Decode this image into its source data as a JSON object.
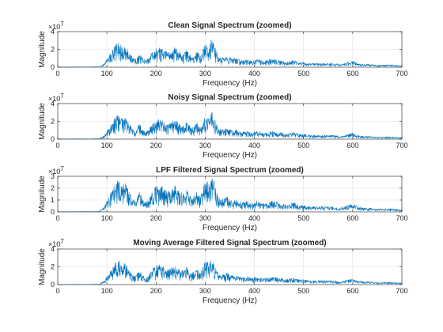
{
  "figure": {
    "background": "#ffffff"
  },
  "chart_data": [
    {
      "type": "line",
      "title": "Clean Signal Spectrum (zoomed)",
      "xlabel": "Frequency (Hz)",
      "ylabel": "Magnitude",
      "y_exponent": "×10",
      "y_exponent_power": "7",
      "xlim": [
        0,
        700
      ],
      "ylim": [
        0,
        4
      ],
      "xticks": [
        "0",
        "100",
        "200",
        "300",
        "400",
        "500",
        "600",
        "700"
      ],
      "yticks": [
        "0",
        "2",
        "4"
      ],
      "grid": true,
      "color": "#0072BD",
      "envelope": {
        "x": [
          0,
          85,
          95,
          105,
          112,
          118,
          125,
          130,
          138,
          145,
          152,
          158,
          162,
          166,
          172,
          180,
          188,
          195,
          200,
          210,
          218,
          225,
          232,
          240,
          248,
          256,
          262,
          270,
          278,
          284,
          290,
          296,
          302,
          308,
          312,
          318,
          322,
          328,
          335,
          345,
          355,
          365,
          375,
          385,
          395,
          405,
          420,
          435,
          450,
          465,
          480,
          490,
          500,
          515,
          530,
          545,
          560,
          575,
          590,
          600,
          610,
          620,
          635,
          650,
          670,
          690,
          700
        ],
        "y": [
          0,
          0.05,
          0.4,
          1.2,
          1.7,
          2.3,
          2.4,
          2.0,
          2.1,
          1.6,
          1.0,
          0.8,
          1.1,
          1.5,
          1.0,
          0.7,
          1.2,
          1.7,
          1.9,
          2.0,
          1.6,
          1.5,
          1.7,
          2.0,
          1.5,
          1.4,
          1.7,
          1.2,
          1.3,
          1.6,
          1.1,
          1.9,
          2.4,
          2.0,
          2.8,
          2.3,
          1.6,
          1.0,
          1.0,
          1.1,
          0.9,
          0.9,
          0.7,
          0.8,
          0.6,
          0.8,
          0.6,
          0.8,
          0.7,
          0.5,
          0.7,
          0.5,
          0.5,
          0.4,
          0.4,
          0.4,
          0.4,
          0.3,
          0.5,
          0.6,
          0.4,
          0.3,
          0.3,
          0.2,
          0.25,
          0.2,
          0.15
        ]
      },
      "x_step": 0.5
    },
    {
      "type": "line",
      "title": "Noisy Signal Spectrum (zoomed)",
      "xlabel": "Frequency (Hz)",
      "ylabel": "Magnitude",
      "y_exponent": "×10",
      "y_exponent_power": "7",
      "xlim": [
        0,
        700
      ],
      "ylim": [
        0,
        4
      ],
      "xticks": [
        "0",
        "100",
        "200",
        "300",
        "400",
        "500",
        "600",
        "700"
      ],
      "yticks": [
        "0",
        "2",
        "4"
      ],
      "grid": true,
      "color": "#0072BD",
      "envelope": {
        "x": [
          0,
          85,
          95,
          105,
          112,
          118,
          125,
          130,
          138,
          145,
          152,
          158,
          162,
          166,
          172,
          180,
          188,
          195,
          200,
          210,
          218,
          225,
          232,
          240,
          248,
          256,
          262,
          270,
          278,
          284,
          290,
          296,
          302,
          308,
          312,
          318,
          322,
          328,
          335,
          345,
          355,
          365,
          375,
          385,
          395,
          405,
          420,
          435,
          450,
          465,
          480,
          490,
          500,
          515,
          530,
          545,
          560,
          575,
          590,
          600,
          610,
          620,
          635,
          650,
          670,
          690,
          700
        ],
        "y": [
          0,
          0.05,
          0.4,
          1.2,
          1.7,
          2.3,
          2.4,
          2.0,
          2.1,
          1.6,
          1.0,
          0.8,
          1.1,
          1.5,
          1.0,
          0.7,
          1.2,
          1.7,
          1.9,
          2.0,
          1.6,
          1.5,
          1.7,
          2.0,
          1.5,
          1.4,
          1.7,
          1.2,
          1.3,
          1.6,
          1.1,
          1.9,
          2.4,
          2.0,
          2.8,
          2.3,
          1.6,
          1.0,
          1.0,
          1.1,
          0.9,
          0.9,
          0.7,
          0.8,
          0.6,
          0.8,
          0.6,
          0.8,
          0.7,
          0.5,
          0.7,
          0.5,
          0.5,
          0.4,
          0.4,
          0.4,
          0.4,
          0.3,
          0.5,
          0.6,
          0.4,
          0.3,
          0.3,
          0.2,
          0.25,
          0.2,
          0.15
        ]
      },
      "x_step": 0.5
    },
    {
      "type": "line",
      "title": "LPF Filtered Signal Spectrum (zoomed)",
      "xlabel": "Frequency (Hz)",
      "ylabel": "Magnitude",
      "y_exponent": "×10",
      "y_exponent_power": "7",
      "xlim": [
        0,
        700
      ],
      "ylim": [
        0,
        3
      ],
      "xticks": [
        "0",
        "100",
        "200",
        "300",
        "400",
        "500",
        "600",
        "700"
      ],
      "yticks": [
        "0",
        "1",
        "2",
        "3"
      ],
      "grid": true,
      "color": "#0072BD",
      "envelope": {
        "x": [
          0,
          85,
          95,
          105,
          112,
          118,
          125,
          130,
          138,
          145,
          152,
          158,
          162,
          166,
          172,
          180,
          188,
          195,
          200,
          210,
          218,
          225,
          232,
          240,
          248,
          256,
          262,
          270,
          278,
          284,
          290,
          296,
          302,
          308,
          312,
          318,
          322,
          328,
          335,
          345,
          355,
          365,
          375,
          385,
          395,
          405,
          420,
          435,
          450,
          465,
          480,
          490,
          500,
          515,
          530,
          545,
          560,
          575,
          590,
          600,
          610,
          620,
          635,
          650,
          670,
          690,
          700
        ],
        "y": [
          0,
          0.05,
          0.4,
          1.2,
          1.7,
          2.3,
          2.4,
          2.0,
          2.1,
          1.6,
          1.0,
          0.8,
          1.1,
          1.5,
          1.0,
          0.7,
          1.2,
          1.7,
          1.9,
          2.0,
          1.6,
          1.5,
          1.7,
          2.0,
          1.5,
          1.4,
          1.7,
          1.2,
          1.3,
          1.6,
          1.1,
          1.9,
          2.4,
          2.0,
          2.8,
          2.3,
          1.6,
          1.0,
          1.0,
          1.1,
          0.9,
          0.9,
          0.7,
          0.8,
          0.6,
          0.8,
          0.6,
          0.8,
          0.7,
          0.5,
          0.7,
          0.5,
          0.5,
          0.4,
          0.4,
          0.4,
          0.4,
          0.3,
          0.5,
          0.6,
          0.4,
          0.3,
          0.3,
          0.2,
          0.25,
          0.2,
          0.15
        ]
      },
      "x_step": 0.5
    },
    {
      "type": "line",
      "title": "Moving Average Filtered Signal Spectrum (zoomed)",
      "xlabel": "Frequency (Hz)",
      "ylabel": "Magnitude",
      "y_exponent": "×10",
      "y_exponent_power": "7",
      "xlim": [
        0,
        700
      ],
      "ylim": [
        0,
        4
      ],
      "xticks": [
        "0",
        "100",
        "200",
        "300",
        "400",
        "500",
        "600",
        "700"
      ],
      "yticks": [
        "0",
        "2",
        "4"
      ],
      "grid": true,
      "color": "#0072BD",
      "envelope": {
        "x": [
          0,
          85,
          95,
          105,
          112,
          118,
          125,
          130,
          138,
          145,
          152,
          158,
          162,
          166,
          172,
          180,
          188,
          195,
          200,
          210,
          218,
          225,
          232,
          240,
          248,
          256,
          262,
          270,
          278,
          284,
          290,
          296,
          302,
          308,
          312,
          318,
          322,
          328,
          335,
          345,
          355,
          365,
          375,
          385,
          395,
          405,
          420,
          435,
          450,
          465,
          480,
          490,
          500,
          515,
          530,
          545,
          560,
          575,
          590,
          600,
          610,
          620,
          635,
          650,
          670,
          690,
          700
        ],
        "y": [
          0,
          0.05,
          0.4,
          1.2,
          1.7,
          2.3,
          2.4,
          2.0,
          2.1,
          1.6,
          1.0,
          0.8,
          1.1,
          1.5,
          1.0,
          0.7,
          1.2,
          1.7,
          1.9,
          2.0,
          1.6,
          1.5,
          1.7,
          2.0,
          1.5,
          1.4,
          1.7,
          1.2,
          1.3,
          1.6,
          1.1,
          1.9,
          2.4,
          2.0,
          2.8,
          2.3,
          1.6,
          1.0,
          1.0,
          1.1,
          0.9,
          0.9,
          0.7,
          0.8,
          0.6,
          0.8,
          0.6,
          0.8,
          0.7,
          0.5,
          0.7,
          0.5,
          0.5,
          0.4,
          0.4,
          0.4,
          0.4,
          0.3,
          0.5,
          0.6,
          0.4,
          0.3,
          0.3,
          0.2,
          0.25,
          0.2,
          0.15
        ]
      },
      "x_step": 0.5
    }
  ]
}
